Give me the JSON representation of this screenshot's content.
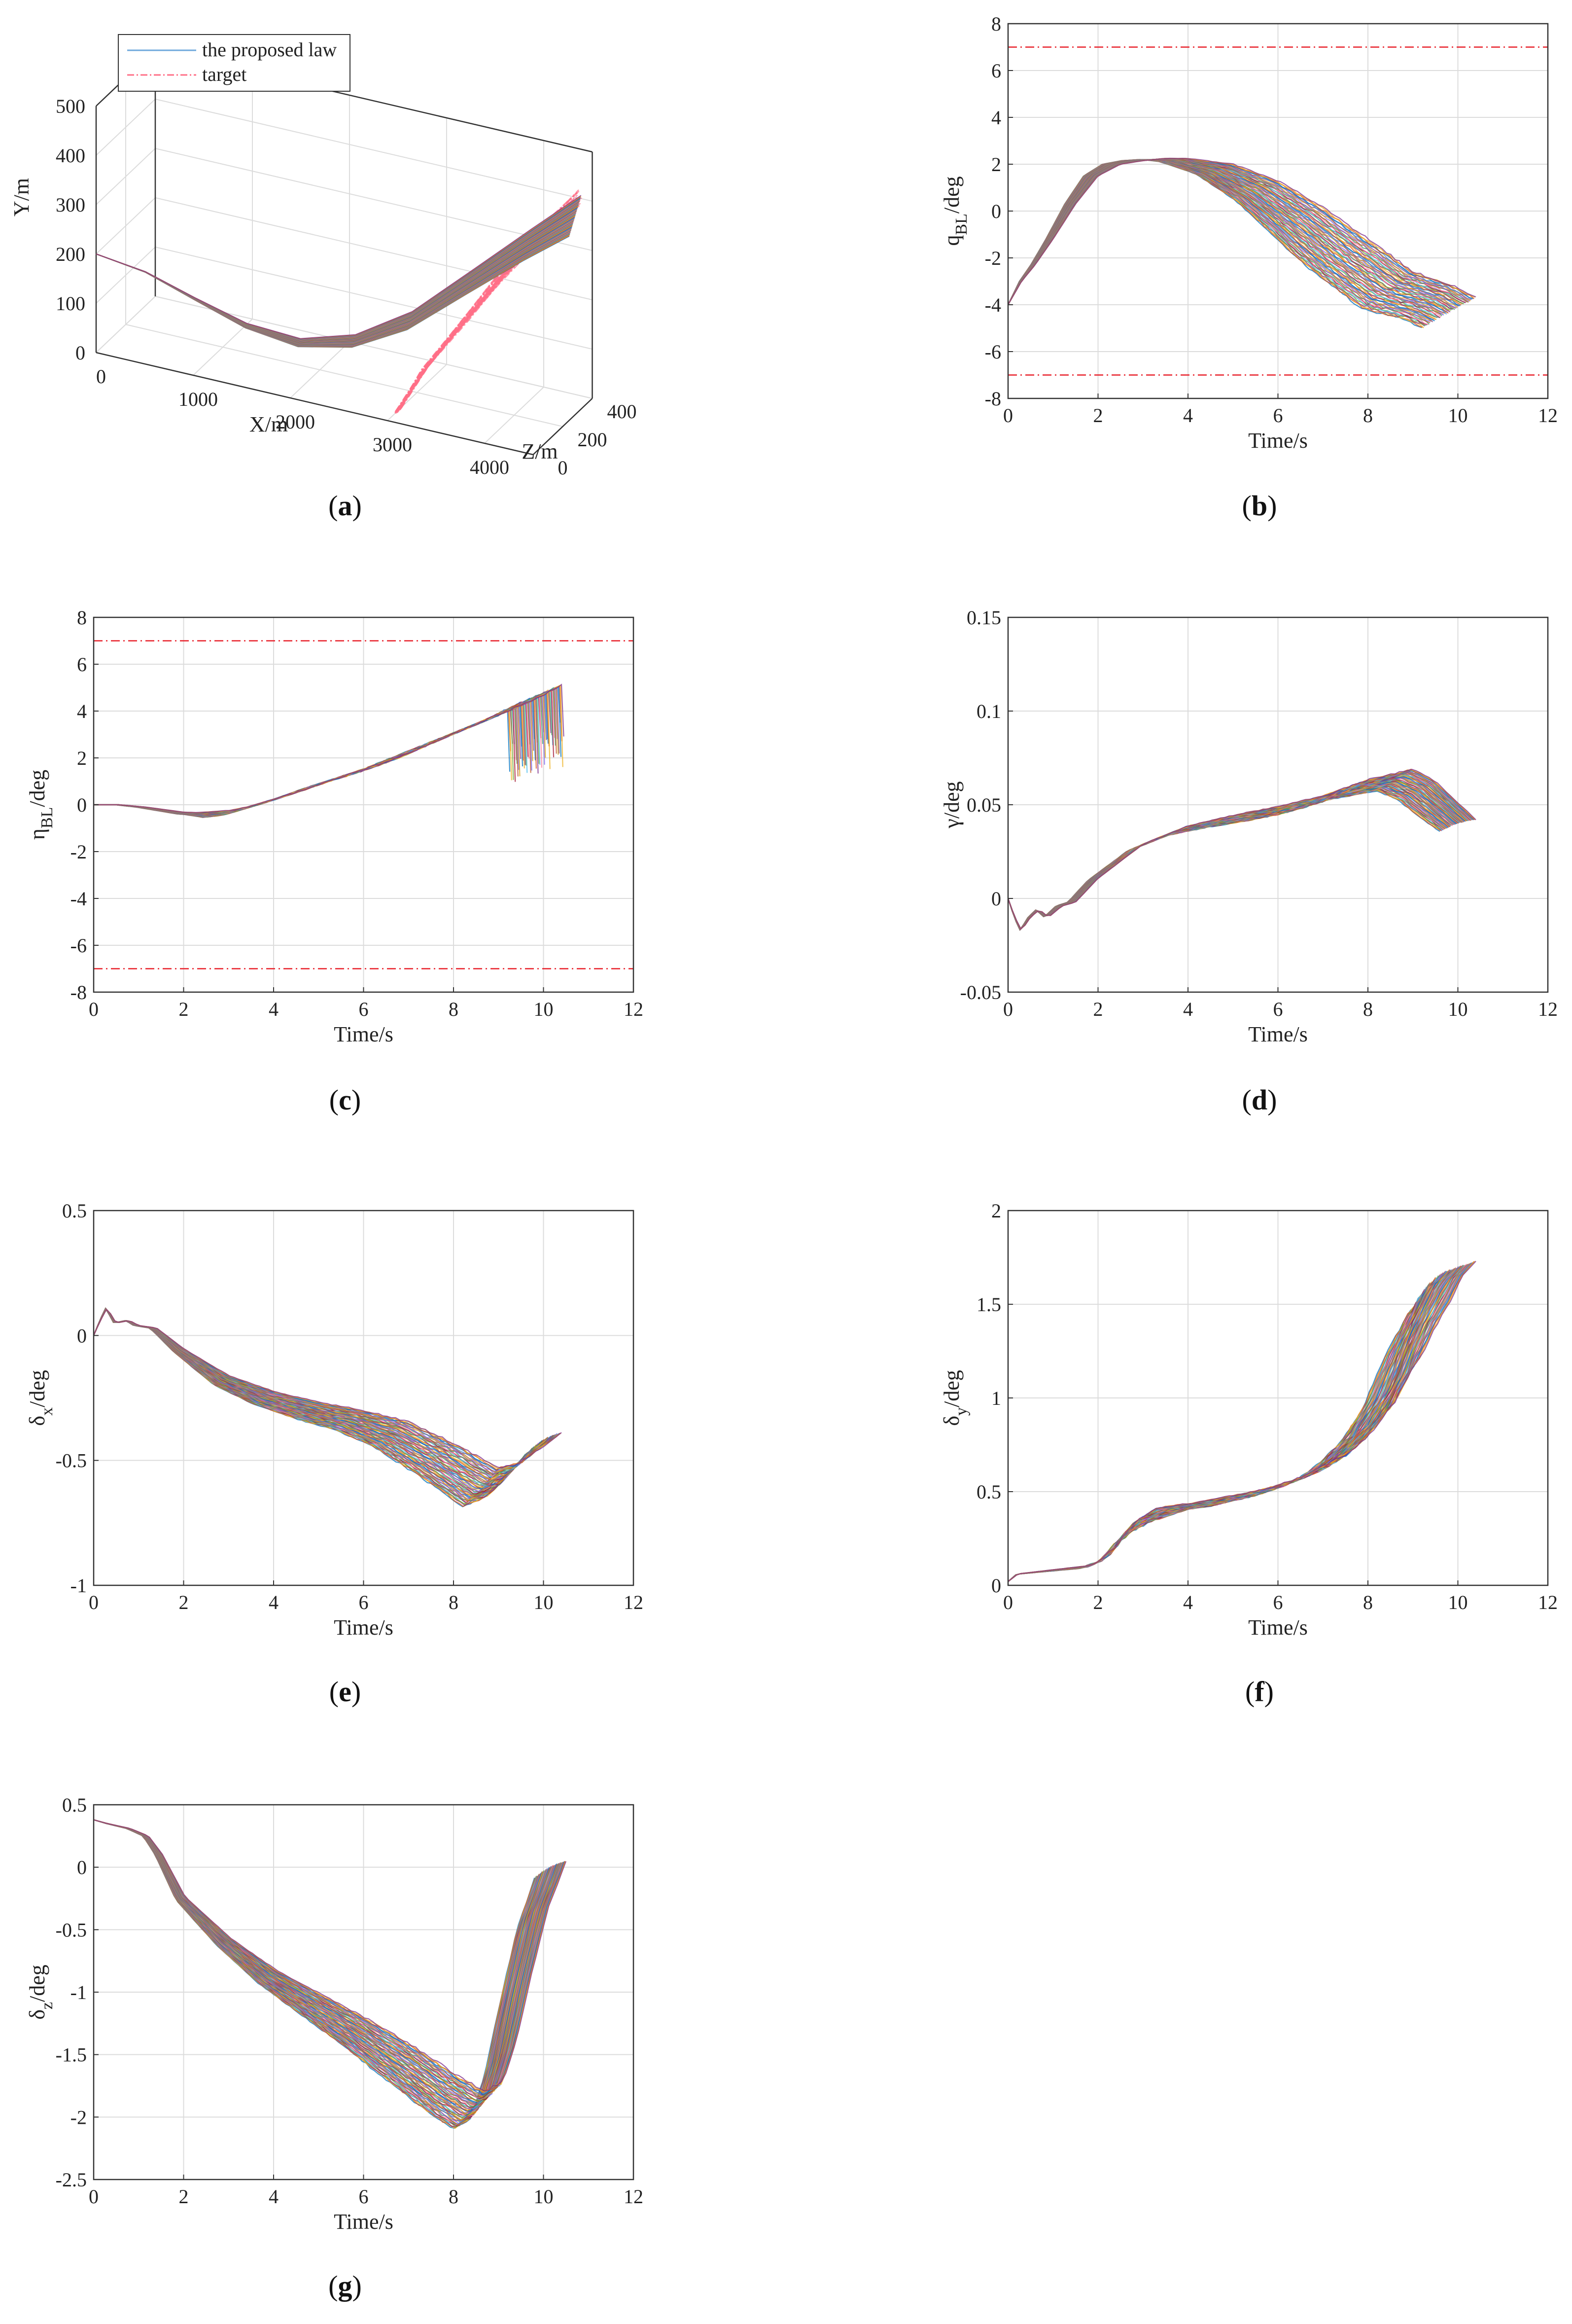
{
  "figure": {
    "background": "#ffffff"
  },
  "panels": [
    {
      "id": "a",
      "caption": "a"
    },
    {
      "id": "b",
      "caption": "b"
    },
    {
      "id": "c",
      "caption": "c"
    },
    {
      "id": "d",
      "caption": "d"
    },
    {
      "id": "e",
      "caption": "e"
    },
    {
      "id": "f",
      "caption": "f"
    },
    {
      "id": "g",
      "caption": "g"
    }
  ],
  "palette": [
    "#0072bd",
    "#d95319",
    "#edb120",
    "#7e2f8e",
    "#77ac30",
    "#4dbeee",
    "#a2142f",
    "#ff7fa0",
    "#3b9b6b",
    "#c05a2a",
    "#7b68ee",
    "#d4a017",
    "#8b4a8b",
    "#4c8fd0"
  ],
  "chart_data": [
    {
      "panel": "a",
      "type": "line3d",
      "title": "",
      "xlabel": "X/m",
      "ylabel": "Y/m",
      "zlabel": "Z/m",
      "xlim": [
        0,
        4500
      ],
      "ylim": [
        0,
        500
      ],
      "zlim": [
        0,
        400
      ],
      "xticks": [
        0,
        1000,
        2000,
        3000,
        4000
      ],
      "yticks": [
        0,
        100,
        200,
        300,
        400,
        500
      ],
      "zticks": [
        0,
        200,
        400
      ],
      "legend": {
        "position": "top-left",
        "entries": [
          "the proposed law",
          "target"
        ]
      },
      "series": [
        {
          "name": "the proposed law",
          "color": "#6fa8dc",
          "style": "solid",
          "x": [
            0,
            500,
            1000,
            1500,
            2000,
            2500,
            3000,
            3500,
            4000,
            4400
          ],
          "y": [
            200,
            185,
            150,
            115,
            95,
            110,
            160,
            240,
            320,
            380
          ],
          "z": [
            0,
            5,
            15,
            30,
            60,
            100,
            150,
            220,
            290,
            350
          ]
        },
        {
          "name": "target",
          "color": "#ff6f87",
          "style": "dashdot",
          "x": [
            3000,
            3200,
            3500,
            3800,
            4100,
            4400
          ],
          "y": [
            0,
            80,
            170,
            260,
            340,
            410
          ],
          "z": [
            80,
            130,
            190,
            250,
            310,
            370
          ]
        }
      ],
      "runs": 60
    },
    {
      "panel": "b",
      "type": "line",
      "xlabel": "Time/s",
      "ylabel": "qBL/deg",
      "ylabel_main": "q",
      "ylabel_sub": "BL",
      "ylabel_tail": "/deg",
      "xlim": [
        0,
        12
      ],
      "ylim": [
        -8,
        8
      ],
      "xticks": [
        0,
        2,
        4,
        6,
        8,
        10,
        12
      ],
      "yticks": [
        -8,
        -6,
        -4,
        -2,
        0,
        2,
        4,
        6,
        8
      ],
      "limits": [
        7,
        -7
      ],
      "runs": 60,
      "t_end_range": [
        9.2,
        10.4
      ],
      "base": [
        [
          0,
          -4
        ],
        [
          0.3,
          -3
        ],
        [
          0.6,
          -2.3
        ],
        [
          1.0,
          -1.2
        ],
        [
          1.5,
          0.3
        ],
        [
          2.0,
          1.5
        ],
        [
          2.5,
          2.0
        ],
        [
          3.0,
          2.15
        ],
        [
          3.5,
          2.2
        ],
        [
          4.0,
          2.15
        ],
        [
          5.0,
          1.7
        ],
        [
          6.0,
          0.8
        ],
        [
          7.0,
          -0.5
        ],
        [
          8.0,
          -2.0
        ],
        [
          9.0,
          -3.3
        ],
        [
          10.0,
          -3.9
        ],
        [
          10.4,
          -4.3
        ]
      ],
      "spread": [
        [
          0,
          0
        ],
        [
          3.0,
          0
        ],
        [
          4.0,
          0.1
        ],
        [
          6.0,
          0.5
        ],
        [
          8.0,
          0.8
        ],
        [
          10.4,
          0.6
        ]
      ]
    },
    {
      "panel": "c",
      "type": "line",
      "xlabel": "Time/s",
      "ylabel": "ηBL/deg",
      "ylabel_main": "η",
      "ylabel_sub": "BL",
      "ylabel_tail": "/deg",
      "xlim": [
        0,
        12
      ],
      "ylim": [
        -8,
        8
      ],
      "xticks": [
        0,
        2,
        4,
        6,
        8,
        10,
        12
      ],
      "yticks": [
        -8,
        -6,
        -4,
        -2,
        0,
        2,
        4,
        6,
        8
      ],
      "limits": [
        7,
        -7
      ],
      "runs": 60,
      "t_end_range": [
        9.2,
        10.4
      ],
      "base": [
        [
          0,
          0
        ],
        [
          0.5,
          0
        ],
        [
          1.0,
          -0.1
        ],
        [
          2.0,
          -0.4
        ],
        [
          2.6,
          -0.45
        ],
        [
          3.0,
          -0.3
        ],
        [
          4.0,
          0.3
        ],
        [
          5.0,
          1.0
        ],
        [
          6.0,
          1.6
        ],
        [
          7.0,
          2.4
        ],
        [
          8.0,
          3.2
        ],
        [
          9.0,
          4.0
        ],
        [
          9.6,
          4.6
        ]
      ],
      "spread": [
        [
          0,
          0
        ],
        [
          2.0,
          0
        ],
        [
          3.0,
          0.2
        ],
        [
          6.0,
          0.4
        ],
        [
          9.0,
          0.5
        ]
      ],
      "drop_end": true
    },
    {
      "panel": "d",
      "type": "line",
      "xlabel": "Time/s",
      "ylabel": "γ/deg",
      "ylabel_main": "γ",
      "ylabel_sub": "",
      "ylabel_tail": "/deg",
      "xlim": [
        0,
        12
      ],
      "ylim": [
        -0.05,
        0.15
      ],
      "xticks": [
        0,
        2,
        4,
        6,
        8,
        10,
        12
      ],
      "yticks": [
        -0.05,
        0,
        0.05,
        0.1,
        0.15
      ],
      "ytick_labels": [
        "-0.05",
        "0",
        "0.05",
        "0.1",
        "0.15"
      ],
      "runs": 60,
      "t_end_range": [
        9.6,
        10.4
      ],
      "base": [
        [
          0,
          0
        ],
        [
          0.15,
          -0.01
        ],
        [
          0.3,
          -0.017
        ],
        [
          0.5,
          -0.01
        ],
        [
          0.7,
          -0.006
        ],
        [
          0.9,
          -0.01
        ],
        [
          1.2,
          -0.004
        ],
        [
          1.5,
          -0.002
        ],
        [
          2.0,
          0.01
        ],
        [
          3.0,
          0.027
        ],
        [
          4.0,
          0.036
        ],
        [
          5.0,
          0.041
        ],
        [
          6.0,
          0.045
        ],
        [
          7.0,
          0.05
        ],
        [
          8.0,
          0.058
        ],
        [
          9.0,
          0.063
        ],
        [
          9.5,
          0.058
        ],
        [
          10.4,
          0.04
        ]
      ],
      "spread": [
        [
          0,
          0
        ],
        [
          1.5,
          0
        ],
        [
          3.0,
          0.002
        ],
        [
          6.0,
          0.004
        ],
        [
          9.0,
          0.006
        ],
        [
          10.4,
          0.002
        ]
      ]
    },
    {
      "panel": "e",
      "type": "line",
      "xlabel": "Time/s",
      "ylabel": "δx/deg",
      "ylabel_main": "δ",
      "ylabel_sub": "x",
      "ylabel_tail": "/deg",
      "xlim": [
        0,
        12
      ],
      "ylim": [
        -1,
        0.5
      ],
      "xticks": [
        0,
        2,
        4,
        6,
        8,
        10,
        12
      ],
      "yticks": [
        -1,
        -0.5,
        0,
        0.5
      ],
      "ytick_labels": [
        "-1",
        "-0.5",
        "0",
        "0.5"
      ],
      "runs": 60,
      "t_end_range": [
        9.6,
        10.4
      ],
      "base": [
        [
          0,
          0
        ],
        [
          0.15,
          0.06
        ],
        [
          0.3,
          0.11
        ],
        [
          0.5,
          0.05
        ],
        [
          0.8,
          0.06
        ],
        [
          1.0,
          0.04
        ],
        [
          1.4,
          0.03
        ],
        [
          2.0,
          -0.06
        ],
        [
          3.0,
          -0.18
        ],
        [
          4.0,
          -0.25
        ],
        [
          5.0,
          -0.3
        ],
        [
          6.0,
          -0.34
        ],
        [
          7.0,
          -0.4
        ],
        [
          8.0,
          -0.5
        ],
        [
          9.0,
          -0.61
        ],
        [
          9.5,
          -0.57
        ],
        [
          10.4,
          -0.42
        ]
      ],
      "spread": [
        [
          0,
          0
        ],
        [
          1.4,
          0
        ],
        [
          3.0,
          0.02
        ],
        [
          6.0,
          0.04
        ],
        [
          8.0,
          0.07
        ],
        [
          9.0,
          0.08
        ],
        [
          10.4,
          0.03
        ]
      ]
    },
    {
      "panel": "f",
      "type": "line",
      "xlabel": "Time/s",
      "ylabel": "δy/deg",
      "ylabel_main": "δ",
      "ylabel_sub": "y",
      "ylabel_tail": "/deg",
      "xlim": [
        0,
        12
      ],
      "ylim": [
        0,
        2
      ],
      "xticks": [
        0,
        2,
        4,
        6,
        8,
        10,
        12
      ],
      "yticks": [
        0,
        0.5,
        1,
        1.5,
        2
      ],
      "ytick_labels": [
        "0",
        "0.5",
        "1",
        "1.5",
        "2"
      ],
      "runs": 60,
      "t_end_range": [
        9.2,
        10.4
      ],
      "base": [
        [
          0,
          0.02
        ],
        [
          0.2,
          0.06
        ],
        [
          1.0,
          0.08
        ],
        [
          1.8,
          0.1
        ],
        [
          2.2,
          0.15
        ],
        [
          2.6,
          0.28
        ],
        [
          3.0,
          0.36
        ],
        [
          3.5,
          0.4
        ],
        [
          4.0,
          0.42
        ],
        [
          5.0,
          0.46
        ],
        [
          6.0,
          0.52
        ],
        [
          7.0,
          0.62
        ],
        [
          7.5,
          0.72
        ],
        [
          8.0,
          0.85
        ],
        [
          8.5,
          1.05
        ],
        [
          9.0,
          1.35
        ],
        [
          9.5,
          1.6
        ],
        [
          9.8,
          1.68
        ]
      ],
      "spread": [
        [
          0,
          0
        ],
        [
          1.8,
          0.01
        ],
        [
          2.6,
          0.08
        ],
        [
          4.0,
          0.03
        ],
        [
          6.0,
          0.05
        ],
        [
          8.0,
          0.1
        ],
        [
          9.0,
          0.15
        ],
        [
          9.8,
          0.05
        ]
      ],
      "plateau_end": true
    },
    {
      "panel": "g",
      "type": "line",
      "xlabel": "Time/s",
      "ylabel": "δz/deg",
      "ylabel_main": "δ",
      "ylabel_sub": "z",
      "ylabel_tail": "/deg",
      "xlim": [
        0,
        12
      ],
      "ylim": [
        -2.5,
        0.5
      ],
      "xticks": [
        0,
        2,
        4,
        6,
        8,
        10,
        12
      ],
      "yticks": [
        -2.5,
        -2,
        -1.5,
        -1,
        -0.5,
        0,
        0.5
      ],
      "ytick_labels": [
        "-2.5",
        "-2",
        "-1.5",
        "-1",
        "-0.5",
        "0",
        "0.5"
      ],
      "runs": 60,
      "t_end_range": [
        9.8,
        10.5
      ],
      "base": [
        [
          0,
          0.38
        ],
        [
          0.3,
          0.35
        ],
        [
          0.8,
          0.31
        ],
        [
          1.2,
          0.25
        ],
        [
          1.5,
          0.1
        ],
        [
          2.0,
          -0.25
        ],
        [
          3.0,
          -0.6
        ],
        [
          4.0,
          -0.88
        ],
        [
          5.0,
          -1.1
        ],
        [
          6.0,
          -1.32
        ],
        [
          7.0,
          -1.56
        ],
        [
          8.0,
          -1.82
        ],
        [
          8.6,
          -1.95
        ],
        [
          9.0,
          -1.85
        ],
        [
          9.3,
          -1.5
        ],
        [
          9.6,
          -1.0
        ],
        [
          10.0,
          -0.4
        ],
        [
          10.4,
          0
        ]
      ],
      "spread": [
        [
          0,
          0
        ],
        [
          1.2,
          0
        ],
        [
          3.0,
          0.03
        ],
        [
          6.0,
          0.1
        ],
        [
          8.0,
          0.15
        ],
        [
          8.8,
          0.15
        ],
        [
          10.4,
          0.05
        ]
      ]
    }
  ]
}
